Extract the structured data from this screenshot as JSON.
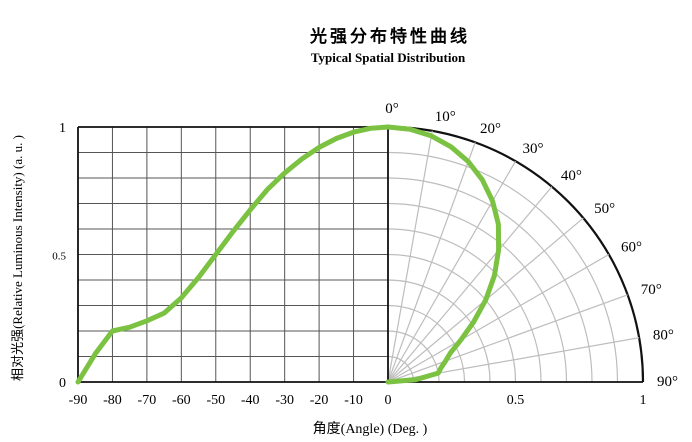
{
  "chart_data": {
    "type": "polar-line",
    "title": "光强分布特性曲线",
    "subtitle": "Typical Spatial Distribution",
    "ylabel": "相对光强(Relative Luminous Intensity) (a. u. )",
    "xlabel": "角度(Angle) (Deg. )",
    "cartesian": {
      "x_ticks": [
        "-90",
        "-80",
        "-70",
        "-60",
        "-50",
        "-40",
        "-30",
        "-20",
        "-10",
        "0"
      ],
      "x_range": [
        -90,
        0
      ],
      "y_ticks": [
        "0",
        "0.5",
        "1"
      ],
      "y_range": [
        0,
        1
      ],
      "grid": true
    },
    "polar": {
      "angle_ticks": [
        "0°",
        "10°",
        "20°",
        "30°",
        "40°",
        "50°",
        "60°",
        "70°",
        "80°",
        "90°"
      ],
      "radius_ticks": [
        "0.5",
        "1"
      ],
      "angle_range": [
        0,
        90
      ],
      "radius_range": [
        0,
        1
      ],
      "grid": true
    },
    "series": [
      {
        "color": "#7cc242",
        "angles": [
          0,
          5,
          10,
          15,
          20,
          25,
          30,
          35,
          40,
          45,
          50,
          55,
          60,
          65,
          70,
          75,
          80,
          85,
          90
        ],
        "values": [
          1.0,
          0.995,
          0.98,
          0.955,
          0.92,
          0.875,
          0.82,
          0.755,
          0.675,
          0.59,
          0.5,
          0.41,
          0.33,
          0.27,
          0.24,
          0.215,
          0.2,
          0.11,
          0.0
        ]
      }
    ]
  }
}
